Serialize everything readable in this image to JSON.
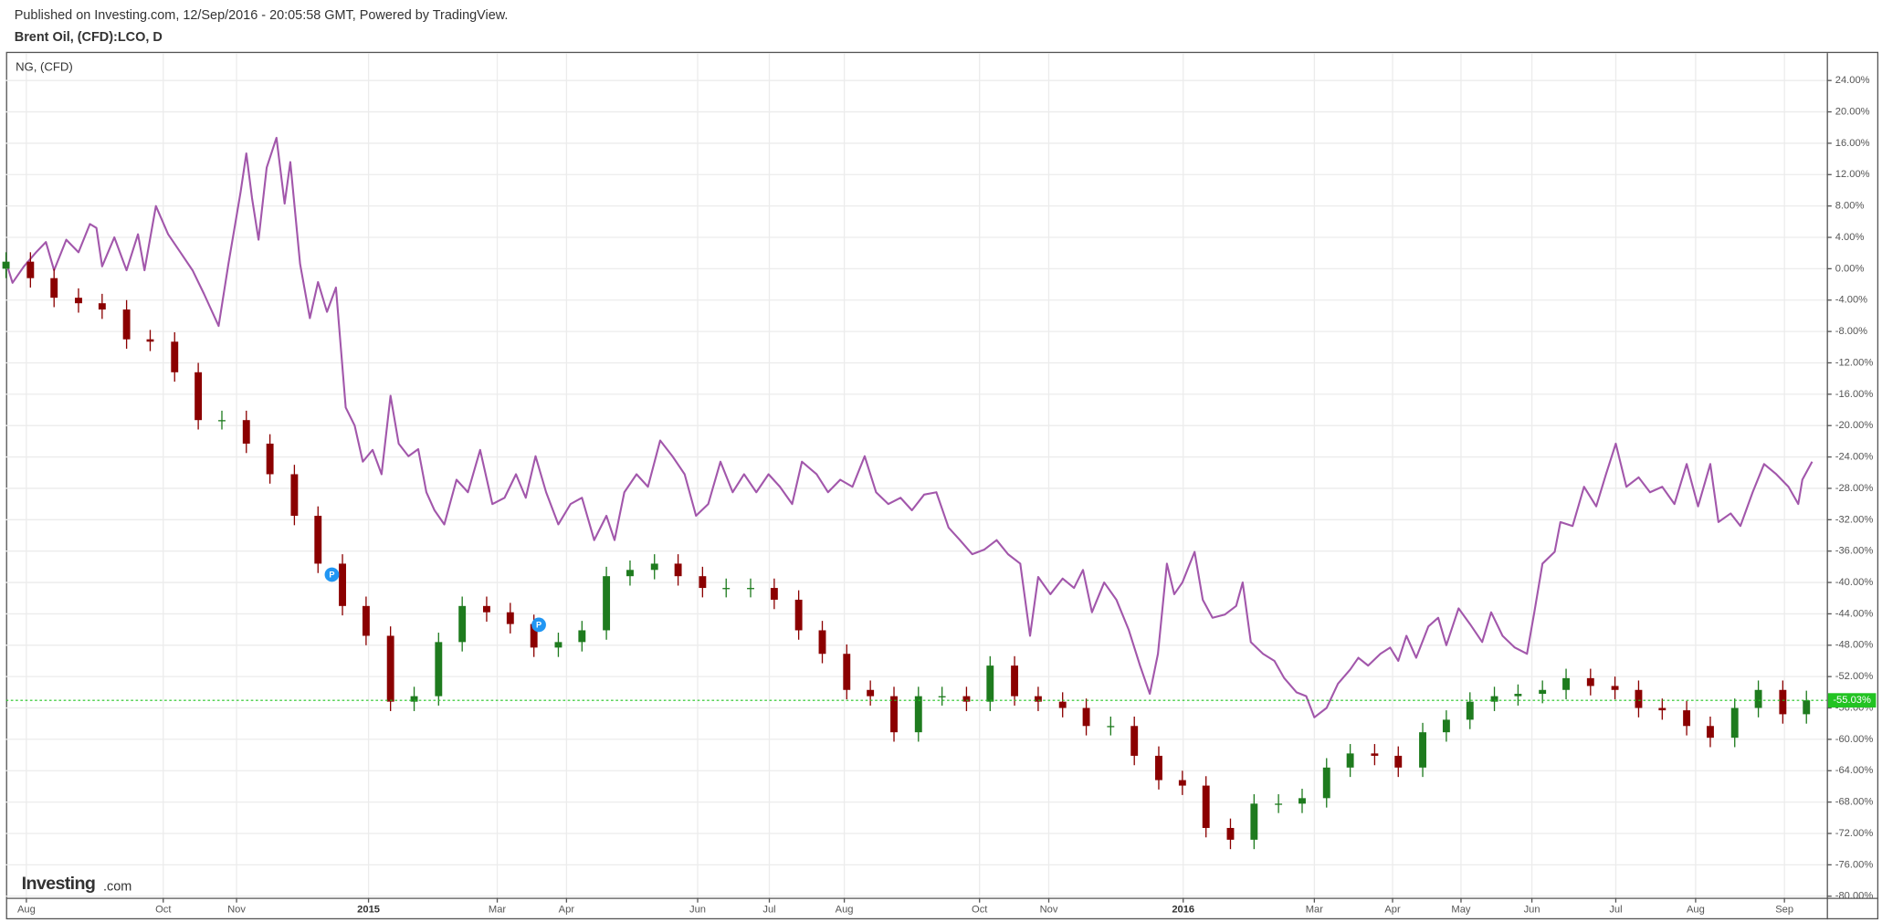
{
  "chart_data": {
    "type": "candlestick",
    "source": "Published on Investing.com, 12/Sep/2016 - 20:05:58 GMT, Powered by TradingView.",
    "title": "Brent Oil, (CFD):LCO, D",
    "logo": {
      "name": "Investing",
      "suffix": ".com"
    },
    "xlim": [
      2014.555,
      2016.79
    ],
    "xticks": [
      {
        "value": 2014.58,
        "label": "Aug"
      },
      {
        "value": 2014.748,
        "label": "Oct"
      },
      {
        "value": 2014.838,
        "label": "Nov"
      },
      {
        "value": 2015.0,
        "label": "2015"
      },
      {
        "value": 2015.158,
        "label": "Mar"
      },
      {
        "value": 2015.243,
        "label": "Apr"
      },
      {
        "value": 2015.404,
        "label": "Jun"
      },
      {
        "value": 2015.492,
        "label": "Jul"
      },
      {
        "value": 2015.584,
        "label": "Aug"
      },
      {
        "value": 2015.75,
        "label": "Oct"
      },
      {
        "value": 2015.835,
        "label": "Nov"
      },
      {
        "value": 2016.0,
        "label": "2016"
      },
      {
        "value": 2016.161,
        "label": "Mar"
      },
      {
        "value": 2016.257,
        "label": "Apr"
      },
      {
        "value": 2016.341,
        "label": "May"
      },
      {
        "value": 2016.428,
        "label": "Jun"
      },
      {
        "value": 2016.531,
        "label": "Jul"
      },
      {
        "value": 2016.629,
        "label": "Aug"
      },
      {
        "value": 2016.738,
        "label": "Sep"
      }
    ],
    "ylim": [
      -80.2,
      27.5
    ],
    "yticks": [
      {
        "value": 24,
        "label": "24.00%"
      },
      {
        "value": 20,
        "label": "20.00%"
      },
      {
        "value": 16,
        "label": "16.00%"
      },
      {
        "value": 12,
        "label": "12.00%"
      },
      {
        "value": 8,
        "label": "8.00%"
      },
      {
        "value": 4,
        "label": "4.00%"
      },
      {
        "value": 0,
        "label": "0.00%"
      },
      {
        "value": -4,
        "label": "-4.00%"
      },
      {
        "value": -8,
        "label": "-8.00%"
      },
      {
        "value": -12,
        "label": "-12.00%"
      },
      {
        "value": -16,
        "label": "-16.00%"
      },
      {
        "value": -20,
        "label": "-20.00%"
      },
      {
        "value": -24,
        "label": "-24.00%"
      },
      {
        "value": -28,
        "label": "-28.00%"
      },
      {
        "value": -32,
        "label": "-32.00%"
      },
      {
        "value": -36,
        "label": "-36.00%"
      },
      {
        "value": -40,
        "label": "-40.00%"
      },
      {
        "value": -44,
        "label": "-44.00%"
      },
      {
        "value": -48,
        "label": "-48.00%"
      },
      {
        "value": -52,
        "label": "-52.00%"
      },
      {
        "value": -56,
        "label": "-56.00%"
      },
      {
        "value": -60,
        "label": "-60.00%"
      },
      {
        "value": -64,
        "label": "-64.00%"
      },
      {
        "value": -68,
        "label": "-68.00%"
      },
      {
        "value": -72,
        "label": "-72.00%"
      },
      {
        "value": -76,
        "label": "-76.00%"
      },
      {
        "value": -80,
        "label": "-80.00%"
      }
    ],
    "grid": true,
    "up_color": "#1e7b1e",
    "down_color": "#8b0000",
    "x": [
      2014.555,
      2014.585,
      2014.614,
      2014.644,
      2014.673,
      2014.703,
      2014.732,
      2014.762,
      2014.791,
      2014.82,
      2014.85,
      2014.879,
      2014.909,
      2014.938,
      2014.968,
      2014.997,
      2015.027,
      2015.056,
      2015.086,
      2015.115,
      2015.145,
      2015.174,
      2015.203,
      2015.233,
      2015.262,
      2015.292,
      2015.321,
      2015.351,
      2015.38,
      2015.41,
      2015.439,
      2015.469,
      2015.498,
      2015.528,
      2015.557,
      2015.587,
      2015.616,
      2015.645,
      2015.675,
      2015.704,
      2015.734,
      2015.763,
      2015.793,
      2015.822,
      2015.852,
      2015.881,
      2015.911,
      2015.94,
      2015.97,
      2015.999,
      2016.028,
      2016.058,
      2016.087,
      2016.117,
      2016.146,
      2016.176,
      2016.205,
      2016.235,
      2016.264,
      2016.294,
      2016.323,
      2016.352,
      2016.382,
      2016.411,
      2016.441,
      2016.47,
      2016.5,
      2016.53,
      2016.559,
      2016.588,
      2016.618,
      2016.647,
      2016.677,
      2016.706,
      2016.736,
      2016.765
    ],
    "open": [
      0,
      0.9,
      -1.2,
      -3.7,
      -4.4,
      -5.2,
      -9.0,
      -9.3,
      -13.2,
      -19.3,
      -19.3,
      -22.3,
      -26.2,
      -31.5,
      -37.6,
      -43.0,
      -46.8,
      -55.2,
      -54.5,
      -47.6,
      -43.0,
      -43.8,
      -45.3,
      -48.3,
      -47.6,
      -46.1,
      -39.2,
      -38.4,
      -37.6,
      -39.2,
      -40.7,
      -40.7,
      -40.7,
      -42.2,
      -46.1,
      -49.1,
      -53.7,
      -54.5,
      -59.1,
      -54.5,
      -54.5,
      -55.2,
      -50.6,
      -54.5,
      -55.2,
      -56.0,
      -58.3,
      -58.3,
      -62.1,
      -65.2,
      -65.9,
      -71.3,
      -72.8,
      -68.2,
      -68.2,
      -67.5,
      -63.6,
      -61.8,
      -62.1,
      -63.6,
      -59.1,
      -57.5,
      -55.2,
      -54.5,
      -54.2,
      -53.7,
      -52.2,
      -53.2,
      -53.7,
      -56.0,
      -56.3,
      -58.3,
      -59.8,
      -56.0,
      -53.7,
      -56.8
    ],
    "high": [
      2.1,
      2.1,
      0.0,
      -2.5,
      -3.2,
      -4.0,
      -7.8,
      -8.1,
      -12.0,
      -18.1,
      -18.1,
      -21.1,
      -25.0,
      -30.3,
      -36.4,
      -41.8,
      -45.6,
      -53.3,
      -46.4,
      -41.8,
      -41.8,
      -42.6,
      -44.1,
      -46.4,
      -44.9,
      -38.0,
      -37.2,
      -36.4,
      -36.4,
      -38.0,
      -39.5,
      -39.5,
      -39.5,
      -41.0,
      -44.9,
      -47.9,
      -52.5,
      -53.3,
      -53.3,
      -53.3,
      -53.3,
      -49.4,
      -49.4,
      -53.3,
      -54.0,
      -54.8,
      -57.1,
      -57.1,
      -60.9,
      -64.0,
      -64.7,
      -70.1,
      -67.0,
      -67.0,
      -66.3,
      -62.4,
      -60.6,
      -60.6,
      -60.9,
      -57.9,
      -56.3,
      -54.0,
      -53.3,
      -53.0,
      -52.5,
      -51.0,
      -51.0,
      -52.0,
      -52.5,
      -54.8,
      -55.1,
      -57.1,
      -54.8,
      -52.5,
      -52.5,
      -53.8
    ],
    "low": [
      -1.2,
      -2.4,
      -4.9,
      -5.6,
      -6.4,
      -10.2,
      -10.5,
      -14.4,
      -20.5,
      -20.5,
      -23.5,
      -27.4,
      -32.7,
      -38.8,
      -44.2,
      -48.0,
      -56.4,
      -56.4,
      -55.7,
      -48.8,
      -45.0,
      -46.5,
      -49.5,
      -49.5,
      -48.8,
      -47.3,
      -40.4,
      -39.6,
      -40.4,
      -41.9,
      -41.9,
      -41.9,
      -43.4,
      -47.3,
      -50.3,
      -54.9,
      -55.7,
      -60.3,
      -60.3,
      -55.7,
      -56.4,
      -56.4,
      -55.7,
      -56.4,
      -57.2,
      -59.5,
      -59.5,
      -63.3,
      -66.4,
      -67.1,
      -72.5,
      -74.0,
      -74.0,
      -69.4,
      -69.4,
      -68.7,
      -64.8,
      -63.3,
      -64.8,
      -64.8,
      -60.3,
      -58.7,
      -56.4,
      -55.7,
      -55.4,
      -54.9,
      -54.4,
      -54.9,
      -57.2,
      -57.5,
      -59.5,
      -61.0,
      -61.0,
      -57.2,
      -58.0,
      -58.0
    ],
    "close": [
      0.9,
      -1.2,
      -3.7,
      -4.4,
      -5.2,
      -9.0,
      -9.3,
      -13.2,
      -19.3,
      -19.3,
      -22.3,
      -26.2,
      -31.5,
      -37.6,
      -43.0,
      -46.8,
      -55.2,
      -54.5,
      -47.6,
      -43.0,
      -43.8,
      -45.3,
      -48.3,
      -47.6,
      -46.1,
      -39.2,
      -38.4,
      -37.6,
      -39.2,
      -40.7,
      -40.7,
      -40.7,
      -42.2,
      -46.1,
      -49.1,
      -53.7,
      -54.5,
      -59.1,
      -54.5,
      -54.5,
      -55.2,
      -50.6,
      -54.5,
      -55.2,
      -56.0,
      -58.3,
      -58.3,
      -62.1,
      -65.2,
      -65.9,
      -71.3,
      -72.8,
      -68.2,
      -68.2,
      -67.5,
      -63.6,
      -61.8,
      -62.1,
      -63.6,
      -59.1,
      -57.5,
      -55.2,
      -54.5,
      -54.2,
      -53.7,
      -52.2,
      -53.2,
      -53.7,
      -56.0,
      -56.3,
      -58.3,
      -59.8,
      -56.0,
      -53.7,
      -56.8,
      -55.03
    ],
    "last_price": {
      "value": -55.03,
      "label": "-55.03%",
      "color": "#22c322"
    },
    "markers": [
      {
        "x": 2014.955,
        "y": -39.0,
        "label": "P"
      },
      {
        "x": 2015.209,
        "y": -45.4,
        "label": "P"
      }
    ],
    "marker_color": "#2196f3",
    "series": [
      {
        "name": "NG,  (CFD)",
        "type": "line",
        "color": "#a257ab",
        "x": [
          2014.555,
          2014.563,
          2014.577,
          2014.592,
          2014.604,
          2014.614,
          2014.629,
          2014.644,
          2014.658,
          2014.666,
          2014.673,
          2014.688,
          2014.703,
          2014.717,
          2014.725,
          2014.739,
          2014.754,
          2014.769,
          2014.784,
          2014.798,
          2014.816,
          2014.828,
          2014.843,
          2014.85,
          2014.857,
          2014.865,
          2014.875,
          2014.887,
          2014.897,
          2014.904,
          2014.916,
          2014.928,
          2014.938,
          2014.949,
          2014.96,
          2014.972,
          2014.983,
          2014.993,
          2015.005,
          2015.016,
          2015.027,
          2015.037,
          2015.049,
          2015.061,
          2015.071,
          2015.081,
          2015.093,
          2015.108,
          2015.122,
          2015.137,
          2015.152,
          2015.167,
          2015.181,
          2015.193,
          2015.205,
          2015.218,
          2015.233,
          2015.248,
          2015.262,
          2015.277,
          2015.292,
          2015.302,
          2015.314,
          2015.329,
          2015.343,
          2015.358,
          2015.373,
          2015.388,
          2015.402,
          2015.417,
          2015.432,
          2015.447,
          2015.461,
          2015.476,
          2015.491,
          2015.505,
          2015.52,
          2015.532,
          2015.55,
          2015.564,
          2015.579,
          2015.594,
          2015.609,
          2015.623,
          2015.638,
          2015.653,
          2015.667,
          2015.682,
          2015.697,
          2015.712,
          2015.726,
          2015.741,
          2015.756,
          2015.771,
          2015.785,
          2015.8,
          2015.812,
          2015.822,
          2015.837,
          2015.852,
          2015.866,
          2015.877,
          2015.888,
          2015.903,
          2015.918,
          2015.933,
          2015.947,
          2015.959,
          2015.969,
          2015.98,
          2015.989,
          2015.999,
          2016.014,
          2016.024,
          2016.036,
          2016.051,
          2016.065,
          2016.073,
          2016.083,
          2016.098,
          2016.112,
          2016.124,
          2016.139,
          2016.151,
          2016.161,
          2016.176,
          2016.19,
          2016.205,
          2016.215,
          2016.227,
          2016.242,
          2016.254,
          2016.264,
          2016.274,
          2016.286,
          2016.301,
          2016.313,
          2016.323,
          2016.338,
          2016.352,
          2016.367,
          2016.378,
          2016.392,
          2016.407,
          2016.422,
          2016.431,
          2016.441,
          2016.456,
          2016.463,
          2016.478,
          2016.492,
          2016.507,
          2016.519,
          2016.531,
          2016.544,
          2016.559,
          2016.573,
          2016.588,
          2016.603,
          2016.618,
          2016.632,
          2016.647,
          2016.657,
          2016.672,
          2016.684,
          2016.699,
          2016.713,
          2016.728,
          2016.743,
          2016.755,
          2016.76,
          2016.772
        ],
        "values": [
          0.9,
          -1.8,
          0.3,
          2.1,
          3.4,
          -0.2,
          3.7,
          2.1,
          5.7,
          5.2,
          0.3,
          4.0,
          -0.2,
          4.4,
          -0.2,
          8.0,
          4.4,
          2.1,
          -0.2,
          -3.2,
          -7.3,
          0.6,
          9.8,
          14.7,
          9.0,
          3.7,
          12.9,
          16.7,
          8.3,
          13.6,
          0.6,
          -6.3,
          -1.7,
          -5.5,
          -2.4,
          -17.7,
          -20.0,
          -24.6,
          -23.1,
          -26.2,
          -16.2,
          -22.3,
          -23.9,
          -23.0,
          -28.5,
          -30.8,
          -32.6,
          -26.9,
          -28.5,
          -23.1,
          -30.0,
          -29.2,
          -26.2,
          -29.2,
          -23.9,
          -28.5,
          -32.6,
          -30.0,
          -29.2,
          -34.6,
          -31.5,
          -34.6,
          -28.5,
          -26.2,
          -27.8,
          -21.9,
          -23.9,
          -26.2,
          -31.5,
          -30.0,
          -24.6,
          -28.5,
          -26.2,
          -28.5,
          -26.2,
          -27.8,
          -30.0,
          -24.6,
          -26.2,
          -28.5,
          -26.9,
          -27.8,
          -23.9,
          -28.5,
          -30.0,
          -29.2,
          -30.8,
          -28.8,
          -28.5,
          -33.0,
          -34.6,
          -36.4,
          -35.8,
          -34.6,
          -36.4,
          -37.6,
          -46.8,
          -39.3,
          -41.5,
          -39.5,
          -40.7,
          -38.4,
          -43.8,
          -40.0,
          -42.2,
          -46.0,
          -50.6,
          -54.2,
          -49.1,
          -37.6,
          -41.5,
          -40.0,
          -36.1,
          -42.2,
          -44.5,
          -44.1,
          -43.0,
          -40.0,
          -47.6,
          -49.1,
          -50.0,
          -52.2,
          -54.0,
          -54.5,
          -57.2,
          -56.0,
          -52.9,
          -51.1,
          -49.6,
          -50.6,
          -49.1,
          -48.3,
          -50.0,
          -46.8,
          -49.6,
          -45.6,
          -44.5,
          -48.0,
          -43.3,
          -45.3,
          -47.6,
          -43.8,
          -46.8,
          -48.3,
          -49.1,
          -43.8,
          -37.6,
          -36.1,
          -32.3,
          -32.8,
          -27.8,
          -30.3,
          -26.2,
          -22.3,
          -27.8,
          -26.6,
          -28.5,
          -27.8,
          -30.0,
          -24.9,
          -30.3,
          -24.9,
          -32.3,
          -31.2,
          -32.8,
          -28.5,
          -24.9,
          -26.2,
          -27.8,
          -30.0,
          -26.9,
          -24.6
        ]
      }
    ]
  }
}
